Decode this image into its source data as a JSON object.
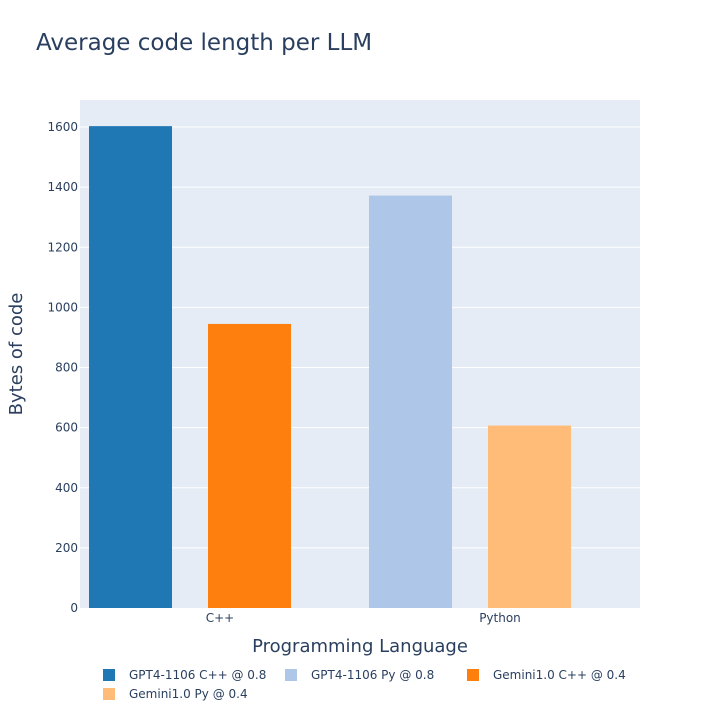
{
  "chart_data": {
    "type": "bar",
    "title": "Average code length per LLM",
    "xlabel": "Programming Language",
    "ylabel": "Bytes of code",
    "categories": [
      "C++",
      "Python"
    ],
    "ylim": [
      0,
      1690
    ],
    "yticks": [
      0,
      200,
      400,
      600,
      800,
      1000,
      1200,
      1400,
      1600
    ],
    "grid": true,
    "legend_position": "bottom",
    "series": [
      {
        "name": "GPT4-1106 C++ @ 0.8",
        "category": "C++",
        "value": 1603,
        "color": "#1f77b4"
      },
      {
        "name": "Gemini1.0 C++ @ 0.4",
        "category": "C++",
        "value": 945,
        "color": "#ff7f0e"
      },
      {
        "name": "GPT4-1106 Py @ 0.8",
        "category": "Python",
        "value": 1372,
        "color": "#aec7e8"
      },
      {
        "name": "Gemini1.0 Py @ 0.4",
        "category": "Python",
        "value": 607,
        "color": "#ffbb78"
      }
    ],
    "legend_order": [
      "GPT4-1106 C++ @ 0.8",
      "GPT4-1106 Py @ 0.8",
      "Gemini1.0 C++ @ 0.4",
      "Gemini1.0 Py @ 0.4"
    ]
  }
}
